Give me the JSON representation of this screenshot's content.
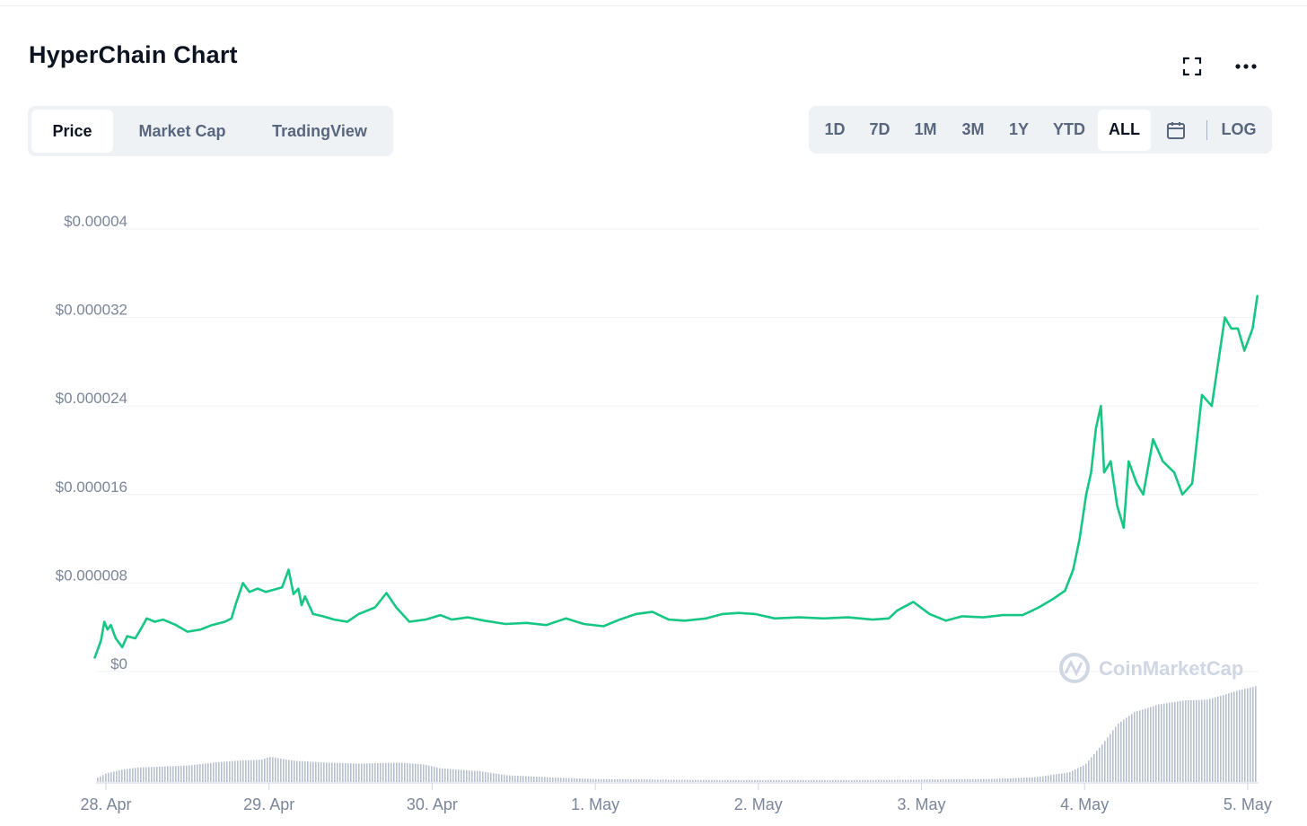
{
  "header": {
    "title": "HyperChain Chart",
    "fullscreen_icon": "fullscreen-icon",
    "more_icon": "more-horizontal-icon"
  },
  "tabs": [
    {
      "label": "Price",
      "active": true
    },
    {
      "label": "Market Cap",
      "active": false
    },
    {
      "label": "TradingView",
      "active": false
    }
  ],
  "ranges": [
    {
      "label": "1D",
      "active": false
    },
    {
      "label": "7D",
      "active": false
    },
    {
      "label": "1M",
      "active": false
    },
    {
      "label": "3M",
      "active": false
    },
    {
      "label": "1Y",
      "active": false
    },
    {
      "label": "YTD",
      "active": false
    },
    {
      "label": "ALL",
      "active": true
    }
  ],
  "calendar_icon": "calendar-icon",
  "log_label": "LOG",
  "watermark": "CoinMarketCap",
  "colors": {
    "line": "#16c784",
    "grid": "#eff2f5",
    "volume": "#b8c0d3",
    "axis_text": "#7a869a"
  },
  "chart_data": {
    "type": "line",
    "title": "HyperChain Chart",
    "x_unit": "day index (0 = 28. Apr)",
    "ylim": [
      0,
      4e-05
    ],
    "y_ticks": [
      {
        "value": 0,
        "label": "$0"
      },
      {
        "value": 8e-06,
        "label": "$0.000008"
      },
      {
        "value": 1.6e-05,
        "label": "$0.000016"
      },
      {
        "value": 2.4e-05,
        "label": "$0.000024"
      },
      {
        "value": 3.2e-05,
        "label": "$0.000032"
      },
      {
        "value": 4e-05,
        "label": "$0.00004"
      }
    ],
    "x_ticks": [
      {
        "x": 0,
        "label": "28. Apr"
      },
      {
        "x": 1,
        "label": "29. Apr"
      },
      {
        "x": 2,
        "label": "30. Apr"
      },
      {
        "x": 3,
        "label": "1. May"
      },
      {
        "x": 4,
        "label": "2. May"
      },
      {
        "x": 5,
        "label": "3. May"
      },
      {
        "x": 6,
        "label": "4. May"
      },
      {
        "x": 7,
        "label": "5. May"
      }
    ],
    "xlim": [
      -0.07,
      7.08
    ],
    "grid": true,
    "series": [
      {
        "values": [
          [
            -0.07,
            1.2e-06
          ],
          [
            -0.03,
            2.8e-06
          ],
          [
            -0.01,
            4.5e-06
          ],
          [
            0.01,
            3.8e-06
          ],
          [
            0.03,
            4.2e-06
          ],
          [
            0.06,
            3e-06
          ],
          [
            0.1,
            2.2e-06
          ],
          [
            0.13,
            3.2e-06
          ],
          [
            0.18,
            3e-06
          ],
          [
            0.22,
            4e-06
          ],
          [
            0.25,
            4.8e-06
          ],
          [
            0.3,
            4.5e-06
          ],
          [
            0.35,
            4.7e-06
          ],
          [
            0.43,
            4.2e-06
          ],
          [
            0.5,
            3.6e-06
          ],
          [
            0.58,
            3.8e-06
          ],
          [
            0.65,
            4.2e-06
          ],
          [
            0.73,
            4.5e-06
          ],
          [
            0.77,
            4.8e-06
          ],
          [
            0.8,
            6.3e-06
          ],
          [
            0.84,
            8e-06
          ],
          [
            0.88,
            7.2e-06
          ],
          [
            0.93,
            7.5e-06
          ],
          [
            0.98,
            7.2e-06
          ],
          [
            1.03,
            7.4e-06
          ],
          [
            1.08,
            7.6e-06
          ],
          [
            1.12,
            9.2e-06
          ],
          [
            1.15,
            7e-06
          ],
          [
            1.18,
            7.5e-06
          ],
          [
            1.2,
            6e-06
          ],
          [
            1.22,
            6.8e-06
          ],
          [
            1.27,
            5.2e-06
          ],
          [
            1.33,
            5e-06
          ],
          [
            1.4,
            4.7e-06
          ],
          [
            1.48,
            4.5e-06
          ],
          [
            1.55,
            5.2e-06
          ],
          [
            1.65,
            5.8e-06
          ],
          [
            1.72,
            7.1e-06
          ],
          [
            1.78,
            5.8e-06
          ],
          [
            1.86,
            4.5e-06
          ],
          [
            1.96,
            4.7e-06
          ],
          [
            2.05,
            5.1e-06
          ],
          [
            2.12,
            4.7e-06
          ],
          [
            2.22,
            4.9e-06
          ],
          [
            2.32,
            4.6e-06
          ],
          [
            2.45,
            4.3e-06
          ],
          [
            2.58,
            4.4e-06
          ],
          [
            2.7,
            4.2e-06
          ],
          [
            2.82,
            4.8e-06
          ],
          [
            2.93,
            4.3e-06
          ],
          [
            3.05,
            4.1e-06
          ],
          [
            3.15,
            4.7e-06
          ],
          [
            3.25,
            5.2e-06
          ],
          [
            3.35,
            5.4e-06
          ],
          [
            3.45,
            4.7e-06
          ],
          [
            3.55,
            4.6e-06
          ],
          [
            3.68,
            4.8e-06
          ],
          [
            3.78,
            5.2e-06
          ],
          [
            3.88,
            5.3e-06
          ],
          [
            3.98,
            5.2e-06
          ],
          [
            4.1,
            4.8e-06
          ],
          [
            4.25,
            4.9e-06
          ],
          [
            4.4,
            4.8e-06
          ],
          [
            4.55,
            4.9e-06
          ],
          [
            4.7,
            4.7e-06
          ],
          [
            4.8,
            4.8e-06
          ],
          [
            4.85,
            5.5e-06
          ],
          [
            4.95,
            6.3e-06
          ],
          [
            5.05,
            5.2e-06
          ],
          [
            5.15,
            4.6e-06
          ],
          [
            5.25,
            5e-06
          ],
          [
            5.38,
            4.9e-06
          ],
          [
            5.5,
            5.1e-06
          ],
          [
            5.62,
            5.1e-06
          ],
          [
            5.72,
            5.8e-06
          ],
          [
            5.8,
            6.5e-06
          ],
          [
            5.88,
            7.3e-06
          ],
          [
            5.93,
            9.2e-06
          ],
          [
            5.97,
            1.2e-05
          ],
          [
            6.01,
            1.6e-05
          ],
          [
            6.04,
            1.8e-05
          ],
          [
            6.07,
            2.2e-05
          ],
          [
            6.1,
            2.4e-05
          ],
          [
            6.12,
            1.8e-05
          ],
          [
            6.16,
            1.9e-05
          ],
          [
            6.2,
            1.5e-05
          ],
          [
            6.24,
            1.3e-05
          ],
          [
            6.27,
            1.9e-05
          ],
          [
            6.32,
            1.7e-05
          ],
          [
            6.36,
            1.6e-05
          ],
          [
            6.42,
            2.1e-05
          ],
          [
            6.48,
            1.9e-05
          ],
          [
            6.55,
            1.8e-05
          ],
          [
            6.6,
            1.6e-05
          ],
          [
            6.66,
            1.7e-05
          ],
          [
            6.72,
            2.5e-05
          ],
          [
            6.78,
            2.4e-05
          ],
          [
            6.82,
            2.8e-05
          ],
          [
            6.86,
            3.2e-05
          ],
          [
            6.9,
            3.1e-05
          ],
          [
            6.94,
            3.1e-05
          ],
          [
            6.98,
            2.9e-05
          ],
          [
            7.03,
            3.1e-05
          ],
          [
            7.06,
            3.4e-05
          ]
        ]
      }
    ],
    "volume": {
      "note": "unlabeled volume bars below price line, relative heights 0-1",
      "values": [
        [
          -0.06,
          0.04
        ],
        [
          0.0,
          0.09
        ],
        [
          0.1,
          0.13
        ],
        [
          0.2,
          0.15
        ],
        [
          0.35,
          0.16
        ],
        [
          0.5,
          0.17
        ],
        [
          0.65,
          0.2
        ],
        [
          0.8,
          0.22
        ],
        [
          0.95,
          0.23
        ],
        [
          1.0,
          0.26
        ],
        [
          1.15,
          0.22
        ],
        [
          1.35,
          0.2
        ],
        [
          1.55,
          0.19
        ],
        [
          1.8,
          0.2
        ],
        [
          1.95,
          0.18
        ],
        [
          2.05,
          0.14
        ],
        [
          2.3,
          0.11
        ],
        [
          2.45,
          0.07
        ],
        [
          2.7,
          0.05
        ],
        [
          3.0,
          0.03
        ],
        [
          3.4,
          0.025
        ],
        [
          3.8,
          0.02
        ],
        [
          4.2,
          0.02
        ],
        [
          4.6,
          0.02
        ],
        [
          5.0,
          0.025
        ],
        [
          5.4,
          0.03
        ],
        [
          5.7,
          0.05
        ],
        [
          5.9,
          0.1
        ],
        [
          6.0,
          0.18
        ],
        [
          6.1,
          0.38
        ],
        [
          6.2,
          0.6
        ],
        [
          6.3,
          0.72
        ],
        [
          6.45,
          0.8
        ],
        [
          6.6,
          0.84
        ],
        [
          6.75,
          0.85
        ],
        [
          6.85,
          0.9
        ],
        [
          6.95,
          0.95
        ],
        [
          7.05,
          0.99
        ]
      ]
    }
  }
}
